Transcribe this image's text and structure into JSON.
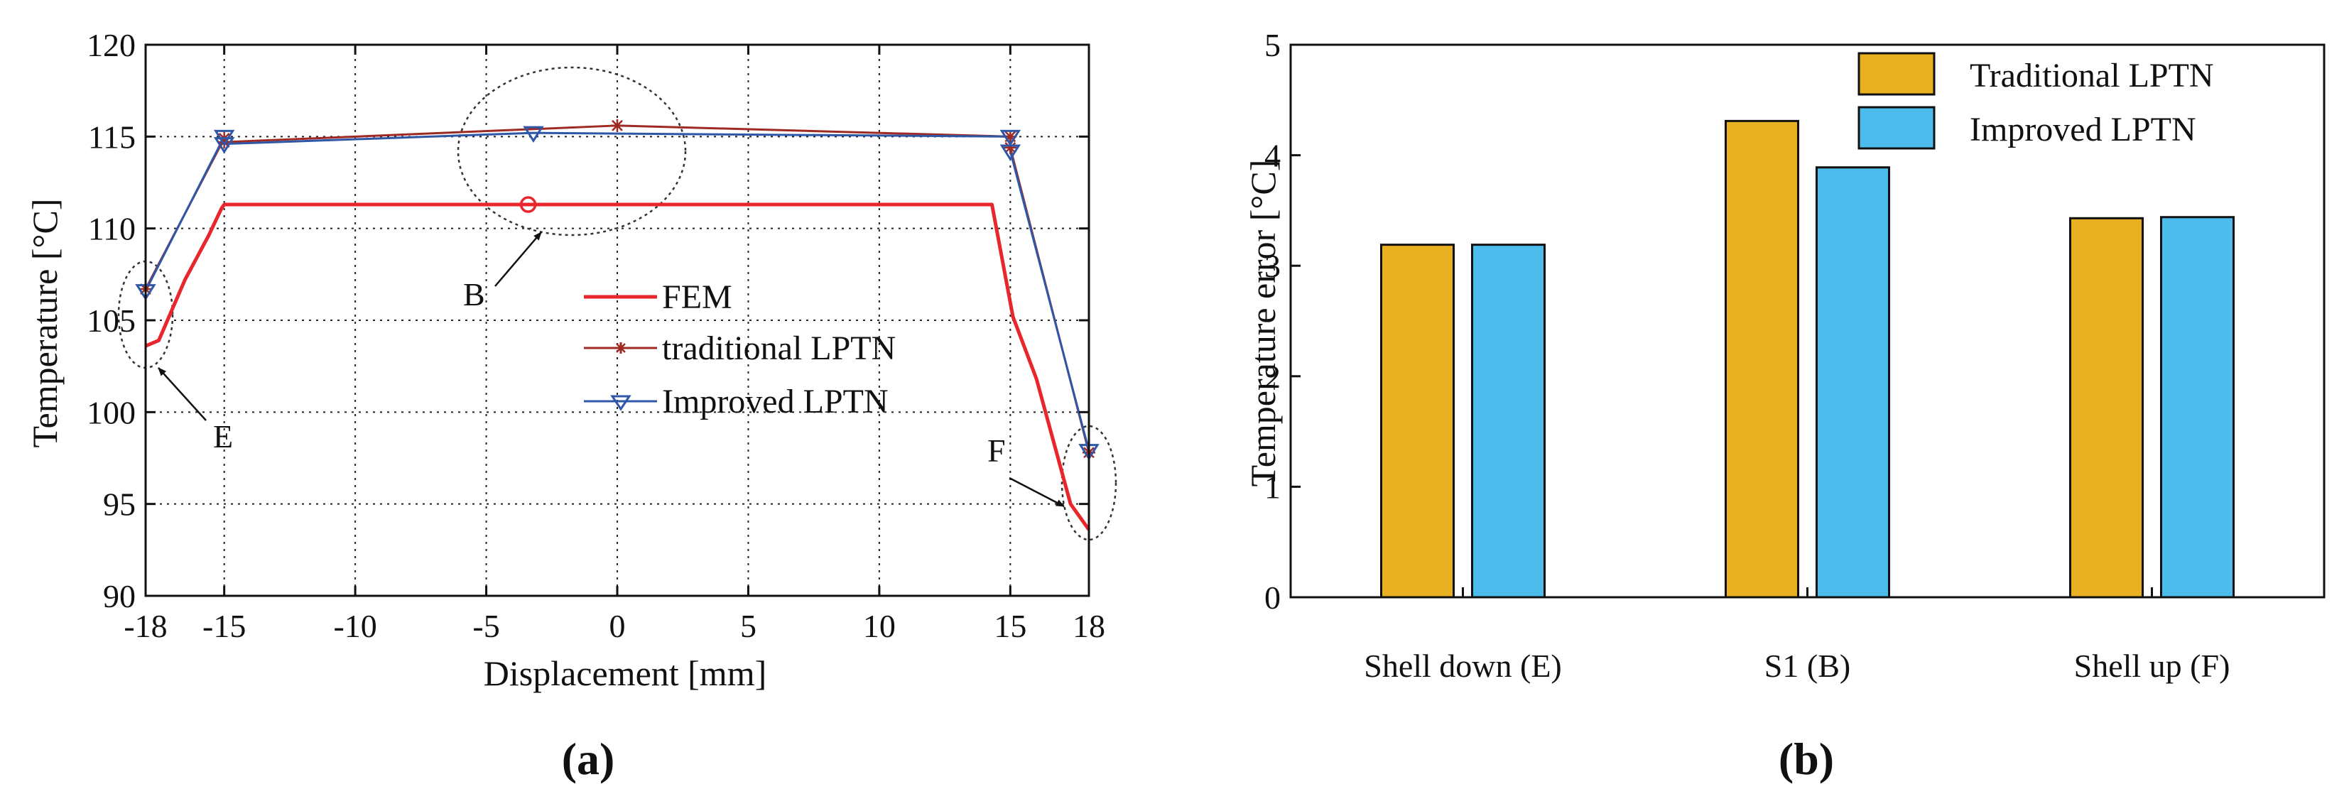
{
  "chart_data": [
    {
      "type": "line",
      "panel_label": "(a)",
      "xlabel": "Displacement [mm]",
      "ylabel": "Temperature [°C]",
      "xlim": [
        -18,
        18
      ],
      "ylim": [
        90,
        120
      ],
      "xticks": [
        -18,
        -15,
        -10,
        -5,
        0,
        5,
        10,
        15,
        18
      ],
      "xtick_labels": [
        "-18",
        "-15",
        "-10",
        "-5",
        "0",
        "5",
        "10",
        "15",
        "18"
      ],
      "yticks": [
        90,
        95,
        100,
        105,
        110,
        115,
        120
      ],
      "ytick_labels": [
        "90",
        "95",
        "100",
        "105",
        "110",
        "115",
        "120"
      ],
      "grid": true,
      "legend_position": "center-right",
      "series": [
        {
          "name": "FEM",
          "color": "#e8262b",
          "marker": "none",
          "x": [
            -18,
            -17.5,
            -16.5,
            -15.6,
            -15.1,
            -15,
            14.3,
            15.1,
            16.0,
            17.3,
            18
          ],
          "y": [
            103.6,
            103.9,
            107.2,
            109.6,
            111.1,
            111.3,
            111.3,
            105.2,
            101.8,
            95.0,
            93.6
          ]
        },
        {
          "name": "traditional LPTN",
          "color": "#9e2a23",
          "marker": "star",
          "x": [
            -18,
            -15,
            -15,
            0,
            15,
            15,
            18
          ],
          "y": [
            106.7,
            114.9,
            114.7,
            115.6,
            115.0,
            114.4,
            97.8
          ]
        },
        {
          "name": "Improved LPTN",
          "color": "#2f57a8",
          "marker": "triangle-down",
          "x": [
            -18,
            -15,
            -15,
            -3.2,
            15,
            15,
            18
          ],
          "y": [
            106.6,
            115.0,
            114.6,
            115.2,
            115.0,
            114.2,
            97.9
          ]
        }
      ],
      "highlight_points": [
        {
          "series": "FEM",
          "x": -3.4,
          "y": 111.3,
          "marker": "circle"
        }
      ],
      "annotations": [
        {
          "label": "E",
          "target": "point at -18 mm"
        },
        {
          "label": "B",
          "target": "mid-span peak"
        },
        {
          "label": "F",
          "target": "point at 18 mm"
        }
      ]
    },
    {
      "type": "bar",
      "panel_label": "(b)",
      "xlabel": "",
      "ylabel": "Temperature error [°C]",
      "ylim": [
        0,
        5
      ],
      "yticks": [
        0,
        1,
        2,
        3,
        4,
        5
      ],
      "ytick_labels": [
        "0",
        "1",
        "2",
        "3",
        "4",
        "5"
      ],
      "grid": false,
      "legend_position": "top-right",
      "categories": [
        "Shell down (E)",
        "S1 (B)",
        "Shell up (F)"
      ],
      "series": [
        {
          "name": "Traditional LPTN",
          "color": "#e9b022",
          "values": [
            3.19,
            4.31,
            3.43
          ]
        },
        {
          "name": "Improved LPTN",
          "color": "#4cbcec",
          "values": [
            3.19,
            3.89,
            3.44
          ]
        }
      ]
    }
  ]
}
